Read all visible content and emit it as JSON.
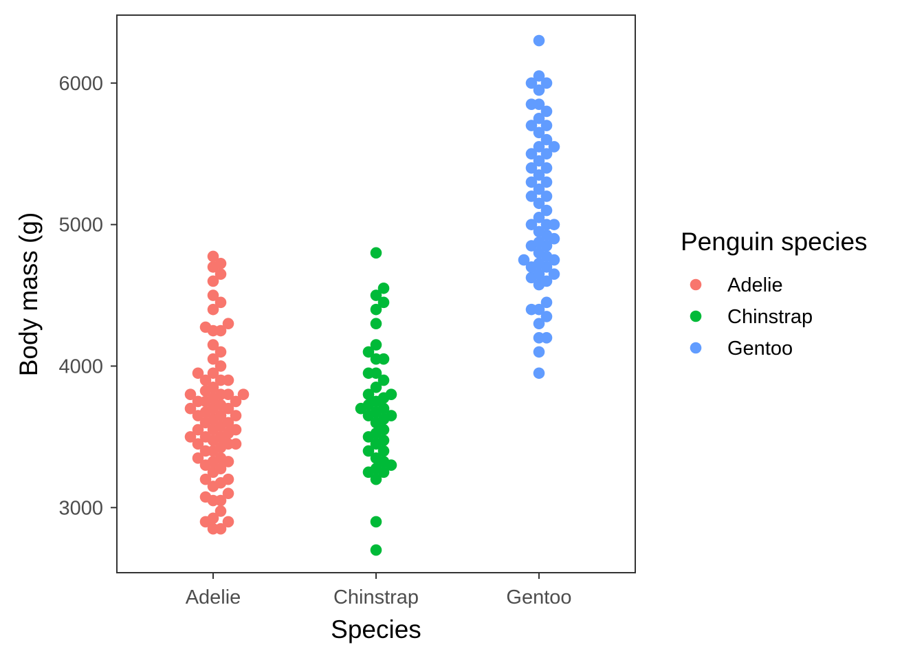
{
  "chart_data": {
    "type": "scatter",
    "xlabel": "Species",
    "ylabel": "Body mass (g)",
    "categories": [
      "Adelie",
      "Chinstrap",
      "Gentoo"
    ],
    "ylim": [
      2540,
      6480
    ],
    "yticks": [
      3000,
      4000,
      5000,
      6000
    ],
    "grid": false,
    "legend": {
      "title": "Penguin species",
      "position": "right",
      "entries": [
        "Adelie",
        "Chinstrap",
        "Gentoo"
      ]
    },
    "colors": {
      "Adelie": "#F8766D",
      "Chinstrap": "#00BA38",
      "Gentoo": "#619CFF"
    },
    "series": [
      {
        "name": "Adelie",
        "values": [
          2850,
          2850,
          2900,
          2900,
          2925,
          2975,
          3050,
          3050,
          3075,
          3100,
          3150,
          3175,
          3200,
          3200,
          3250,
          3275,
          3300,
          3325,
          3325,
          3350,
          3350,
          3400,
          3400,
          3425,
          3450,
          3450,
          3450,
          3475,
          3500,
          3500,
          3500,
          3525,
          3550,
          3550,
          3550,
          3575,
          3600,
          3600,
          3625,
          3650,
          3650,
          3650,
          3675,
          3700,
          3700,
          3700,
          3725,
          3750,
          3750,
          3750,
          3775,
          3800,
          3800,
          3800,
          3800,
          3825,
          3850,
          3900,
          3900,
          3900,
          3950,
          3950,
          4000,
          4050,
          4100,
          4150,
          4250,
          4250,
          4275,
          4300,
          4400,
          4450,
          4500,
          4600,
          4650,
          4700,
          4725,
          4775
        ]
      },
      {
        "name": "Chinstrap",
        "values": [
          2700,
          2900,
          3200,
          3250,
          3250,
          3275,
          3300,
          3325,
          3350,
          3400,
          3400,
          3450,
          3475,
          3500,
          3525,
          3550,
          3600,
          3625,
          3650,
          3650,
          3675,
          3700,
          3700,
          3725,
          3750,
          3775,
          3800,
          3800,
          3850,
          3900,
          3950,
          3950,
          4050,
          4050,
          4100,
          4150,
          4300,
          4400,
          4450,
          4500,
          4550,
          4800
        ]
      },
      {
        "name": "Gentoo",
        "values": [
          3950,
          4100,
          4200,
          4200,
          4300,
          4350,
          4400,
          4400,
          4450,
          4575,
          4600,
          4625,
          4650,
          4650,
          4700,
          4700,
          4725,
          4750,
          4750,
          4775,
          4800,
          4850,
          4850,
          4875,
          4900,
          4925,
          4950,
          5000,
          5000,
          5000,
          5050,
          5100,
          5150,
          5200,
          5200,
          5250,
          5300,
          5300,
          5350,
          5400,
          5400,
          5450,
          5500,
          5500,
          5550,
          5550,
          5600,
          5650,
          5700,
          5700,
          5750,
          5800,
          5850,
          5850,
          5950,
          6000,
          6000,
          6050,
          6300
        ]
      }
    ]
  }
}
